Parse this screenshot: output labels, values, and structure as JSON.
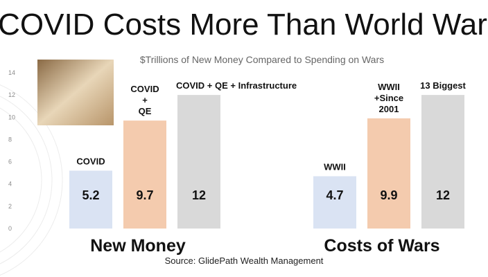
{
  "chart_data": {
    "type": "bar",
    "title": "COVID Costs More Than World War",
    "subtitle": "$Trillions of New Money Compared to Spending on Wars",
    "source": "Source: GlidePath Wealth Management",
    "colors": [
      "#dae3f3",
      "#f4cbae",
      "#d9d9d9"
    ],
    "groups": [
      {
        "name": "New Money",
        "labels": [
          [
            "COVID"
          ],
          [
            "COVID",
            "+",
            "QE"
          ],
          [
            "COVID + QE + Infrastructure"
          ]
        ],
        "values": [
          5.2,
          9.7,
          12
        ]
      },
      {
        "name": "Costs of Wars",
        "labels": [
          [
            "WWII"
          ],
          [
            "WWII",
            "+Since",
            "2001"
          ],
          [
            "13 Biggest"
          ]
        ],
        "values": [
          4.7,
          9.9,
          12
        ]
      }
    ],
    "ylim": [
      0,
      14
    ],
    "yticks": [
      0,
      2,
      4,
      6,
      8,
      10,
      12,
      14
    ],
    "grid": false
  }
}
